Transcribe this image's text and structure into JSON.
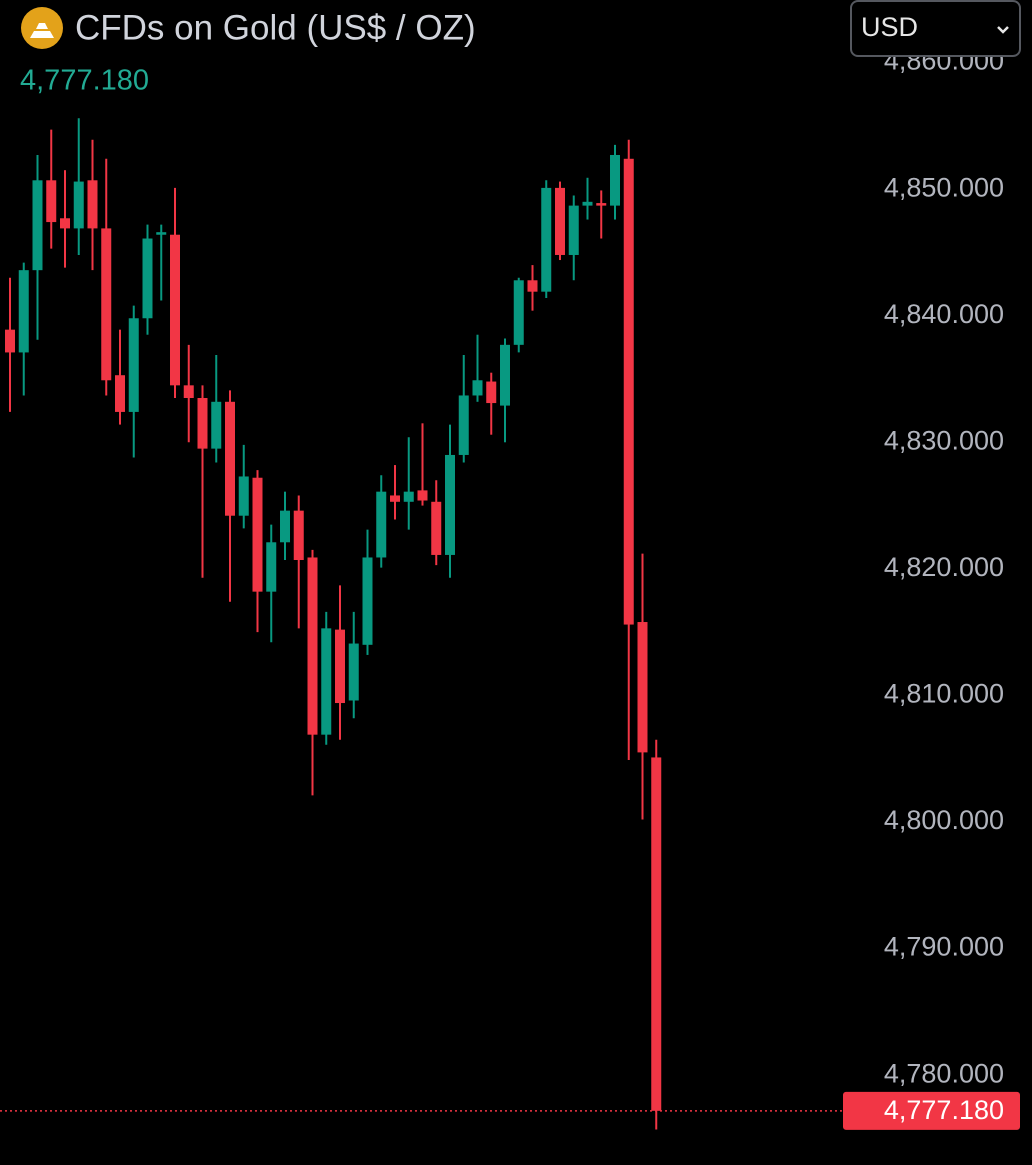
{
  "chart_data": {
    "type": "candlestick",
    "title": "CFDs on Gold (US$ / OZ)",
    "currency": "USD",
    "last_price": 4777.18,
    "last_price_label": "4,777.180",
    "up_color": "#089981",
    "down_color": "#f23645",
    "price_color": "#22ab94",
    "grid": false,
    "ylim": [
      4772.9,
      4860.6
    ],
    "yticks": [
      {
        "value": 4780,
        "label": "4,780.000"
      },
      {
        "value": 4790,
        "label": "4,790.000"
      },
      {
        "value": 4800,
        "label": "4,800.000"
      },
      {
        "value": 4810,
        "label": "4,810.000"
      },
      {
        "value": 4820,
        "label": "4,820.000"
      },
      {
        "value": 4830,
        "label": "4,830.000"
      },
      {
        "value": 4840,
        "label": "4,840.000"
      },
      {
        "value": 4850,
        "label": "4,850.000"
      },
      {
        "value": 4860,
        "label": "4,860.000"
      }
    ],
    "open": [
      4838.9,
      4837.1,
      4843.6,
      4850.7,
      4847.7,
      4846.9,
      4850.7,
      4846.9,
      4835.3,
      4832.4,
      4839.8,
      4846.4,
      4846.4,
      4834.5,
      4833.5,
      4829.5,
      4833.2,
      4824.2,
      4827.2,
      4818.2,
      4822.1,
      4824.6,
      4820.9,
      4806.9,
      4815.2,
      4809.6,
      4814.0,
      4820.9,
      4825.8,
      4825.3,
      4826.2,
      4825.3,
      4821.1,
      4829.0,
      4833.7,
      4834.8,
      4832.9,
      4837.7,
      4842.8,
      4841.9,
      4850.1,
      4844.8,
      4848.7,
      4848.9,
      4848.7,
      4852.4,
      4815.8,
      4805.1
    ],
    "high": [
      4843.0,
      4844.2,
      4852.7,
      4854.7,
      4851.5,
      4855.6,
      4853.9,
      4852.4,
      4838.9,
      4840.8,
      4847.2,
      4847.2,
      4850.1,
      4837.7,
      4834.5,
      4836.9,
      4834.1,
      4829.8,
      4827.8,
      4823.5,
      4826.1,
      4825.8,
      4821.5,
      4816.6,
      4818.7,
      4816.6,
      4823.1,
      4827.4,
      4828.2,
      4830.4,
      4831.5,
      4827.0,
      4831.4,
      4836.9,
      4838.5,
      4835.5,
      4838.2,
      4843.0,
      4844.0,
      4850.7,
      4850.6,
      4849.5,
      4850.9,
      4849.9,
      4853.5,
      4853.9,
      4821.2,
      4806.5
    ],
    "low": [
      4832.4,
      4833.7,
      4838.1,
      4845.3,
      4843.8,
      4844.8,
      4843.6,
      4833.7,
      4831.4,
      4828.8,
      4838.5,
      4841.2,
      4833.5,
      4830.0,
      4819.3,
      4828.4,
      4817.4,
      4823.2,
      4815.0,
      4814.2,
      4820.7,
      4815.3,
      4802.1,
      4806.1,
      4806.5,
      4808.2,
      4813.2,
      4820.1,
      4823.9,
      4823.1,
      4825.0,
      4820.3,
      4819.3,
      4828.4,
      4833.2,
      4830.6,
      4830.0,
      4837.1,
      4840.4,
      4841.4,
      4844.4,
      4842.8,
      4847.6,
      4846.1,
      4847.6,
      4804.9,
      4800.2,
      4775.7
    ],
    "close": [
      4837.1,
      4843.6,
      4850.7,
      4847.4,
      4846.9,
      4850.6,
      4846.9,
      4834.9,
      4832.4,
      4839.8,
      4846.1,
      4846.6,
      4834.5,
      4833.5,
      4829.5,
      4833.2,
      4824.2,
      4827.3,
      4818.2,
      4822.1,
      4824.6,
      4820.7,
      4806.9,
      4815.3,
      4809.4,
      4814.1,
      4820.9,
      4826.1,
      4825.3,
      4826.1,
      4825.4,
      4821.1,
      4829.0,
      4833.7,
      4834.9,
      4833.1,
      4837.7,
      4842.8,
      4841.9,
      4850.1,
      4844.8,
      4848.7,
      4849.0,
      4848.7,
      4852.7,
      4815.6,
      4805.5,
      4777.18
    ]
  }
}
